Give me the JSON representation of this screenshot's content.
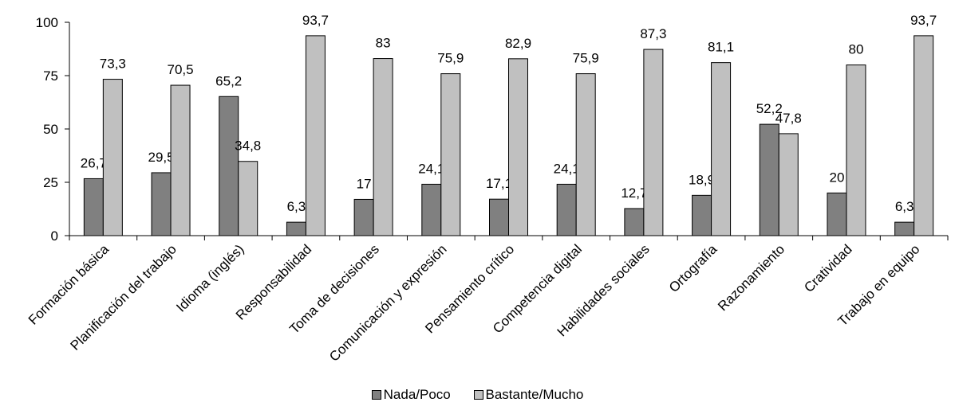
{
  "chart_data": {
    "type": "bar",
    "categories": [
      "Formación básica",
      "Planificación del trabajo",
      "Idioma (inglés)",
      "Responsabilidad",
      "Toma de decisiones",
      "Comunicación y expresión",
      "Pensamiento crítico",
      "Competencia digital",
      "Habilidades sociales",
      "Ortografía",
      "Razonamiento",
      "Cratividad",
      "Trabajo en equipo"
    ],
    "series": [
      {
        "name": "Nada/Poco",
        "color": "#808080",
        "values": [
          26.7,
          29.5,
          65.2,
          6.3,
          17,
          24.1,
          17.1,
          24.1,
          12.7,
          18.9,
          52.2,
          20,
          6.3
        ],
        "labels": [
          "26,7",
          "29,5",
          "65,2",
          "6,3",
          "17",
          "24,1",
          "17,1",
          "24,1",
          "12,7",
          "18,9",
          "52,2",
          "20",
          "6,3"
        ]
      },
      {
        "name": "Bastante/Mucho",
        "color": "#c0c0c0",
        "values": [
          73.3,
          70.5,
          34.8,
          93.7,
          83,
          75.9,
          82.9,
          75.9,
          87.3,
          81.1,
          47.8,
          80,
          93.7
        ],
        "labels": [
          "73,3",
          "70,5",
          "34,8",
          "93,7",
          "83",
          "75,9",
          "82,9",
          "75,9",
          "87,3",
          "81,1",
          "47,8",
          "80",
          "93,7"
        ]
      }
    ],
    "ylim": [
      0,
      100
    ],
    "yticks": [
      0,
      25,
      50,
      75,
      100
    ],
    "ytick_labels": [
      "0",
      "25",
      "50",
      "75",
      "100"
    ],
    "grid": false,
    "legend_position": "bottom",
    "title": "",
    "xlabel": "",
    "ylabel": ""
  },
  "legend": {
    "items": [
      {
        "label": "Nada/Poco",
        "color": "#808080"
      },
      {
        "label": "Bastante/Mucho",
        "color": "#c0c0c0"
      }
    ]
  }
}
